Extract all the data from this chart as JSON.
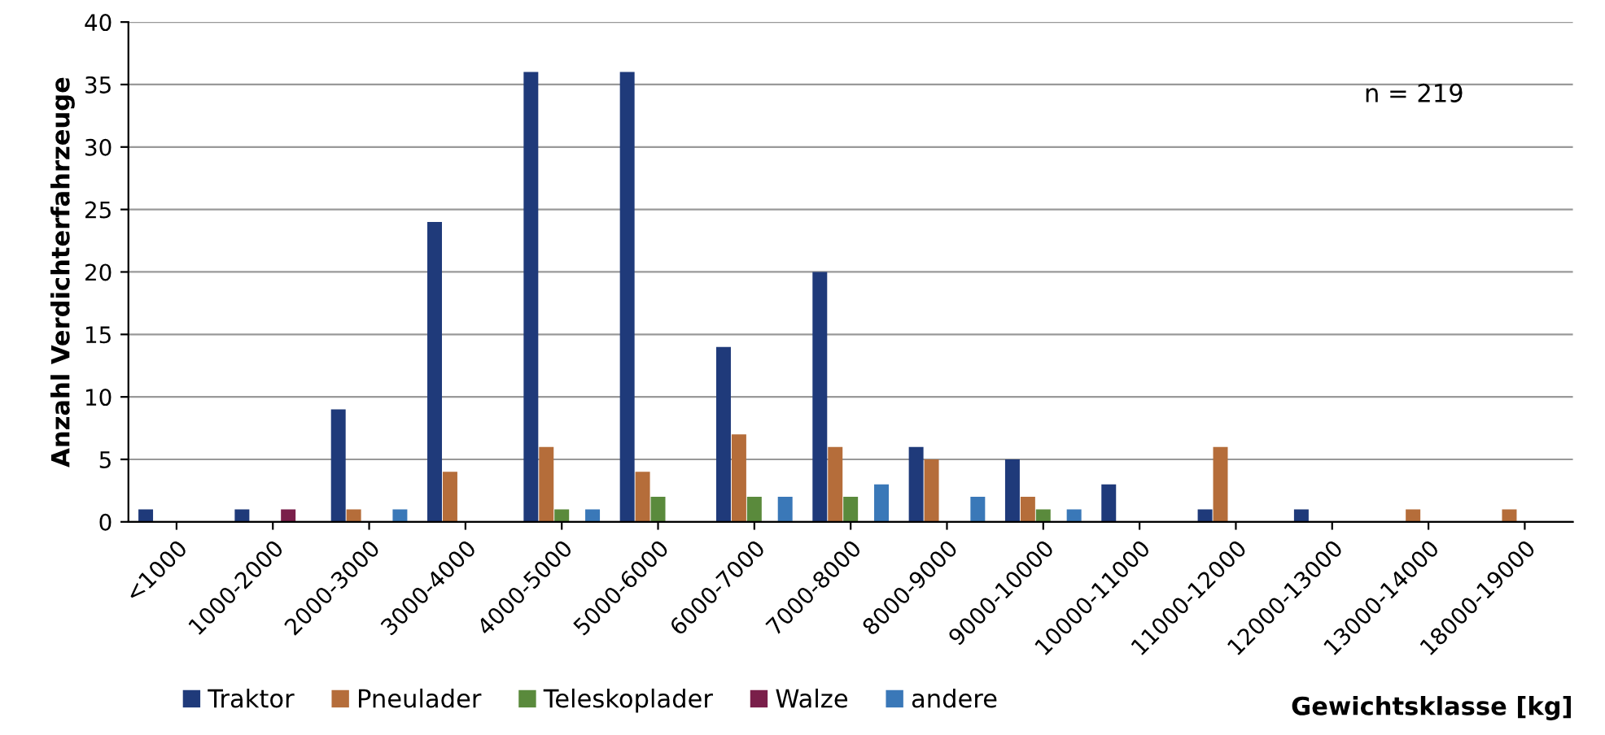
{
  "chart_data": {
    "type": "bar",
    "ylabel": "Anzahl Verdichterfahrzeuge",
    "xlabel": "Gewichtsklasse [kg]",
    "annotations": [
      "n = 219"
    ],
    "categories": [
      "<1000",
      "1000-2000",
      "2000-3000",
      "3000-4000",
      "4000-5000",
      "5000-6000",
      "6000-7000",
      "7000-8000",
      "8000-9000",
      "9000-10000",
      "10000-11000",
      "11000-12000",
      "12000-13000",
      "13000-14000",
      "18000-19000"
    ],
    "series": [
      {
        "name": "Traktor",
        "color": "#1f3a7a",
        "values": [
          1,
          1,
          9,
          24,
          36,
          36,
          14,
          20,
          6,
          5,
          3,
          1,
          1,
          0,
          0
        ]
      },
      {
        "name": "Pneulader",
        "color": "#b56d3a",
        "values": [
          0,
          0,
          1,
          4,
          6,
          4,
          7,
          6,
          5,
          2,
          0,
          6,
          0,
          1,
          1
        ]
      },
      {
        "name": "Teleskoplader",
        "color": "#5a8a3c",
        "values": [
          0,
          0,
          0,
          0,
          1,
          2,
          2,
          2,
          0,
          1,
          0,
          0,
          0,
          0,
          0
        ]
      },
      {
        "name": "Walze",
        "color": "#7a1f4a",
        "values": [
          0,
          1,
          0,
          0,
          0,
          0,
          0,
          0,
          0,
          0,
          0,
          0,
          0,
          0,
          0
        ]
      },
      {
        "name": "andere",
        "color": "#3a78b8",
        "values": [
          0,
          0,
          1,
          0,
          1,
          0,
          2,
          3,
          2,
          1,
          0,
          0,
          0,
          0,
          0
        ]
      }
    ],
    "ylim": [
      0,
      40
    ],
    "yticks": [
      0,
      5,
      10,
      15,
      20,
      25,
      30,
      35,
      40
    ],
    "grid": "y",
    "legend": "bottom left"
  }
}
